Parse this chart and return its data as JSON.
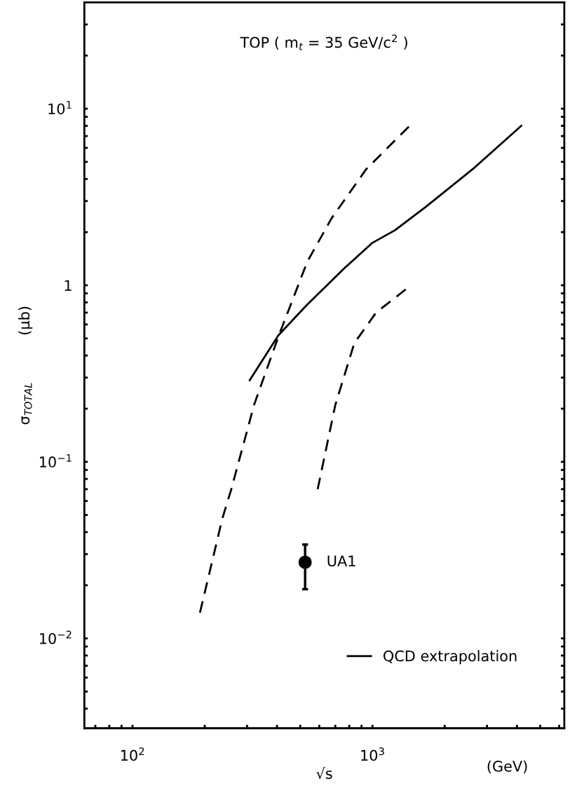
{
  "chart_data": {
    "type": "line",
    "title": "TOP ( m$_{t}$ = 35 GeV/c$^{2}$ )",
    "xlabel": "√s",
    "ylabel": "σ$_{TOTAL}$          (μb)",
    "annotations": [
      "(GeV)"
    ],
    "log": "xy",
    "grid": false,
    "legend": "bottom right",
    "xlim": [
      63,
      6300
    ],
    "ylim": [
      0.0031,
      40
    ],
    "xticks": [
      {
        "value": 70,
        "label": null
      },
      {
        "value": 80,
        "label": null
      },
      {
        "value": 90,
        "label": null
      },
      {
        "value": 100,
        "label": "10$^{2}$"
      },
      {
        "value": 200,
        "label": null
      },
      {
        "value": 300,
        "label": null
      },
      {
        "value": 400,
        "label": null
      },
      {
        "value": 500,
        "label": null
      },
      {
        "value": 600,
        "label": null
      },
      {
        "value": 700,
        "label": null
      },
      {
        "value": 800,
        "label": null
      },
      {
        "value": 900,
        "label": null
      },
      {
        "value": 1000,
        "label": "10$^{3}$"
      },
      {
        "value": 2000,
        "label": null
      },
      {
        "value": 3000,
        "label": null
      },
      {
        "value": 4000,
        "label": null
      },
      {
        "value": 5000,
        "label": null
      },
      {
        "value": 6000,
        "label": null
      }
    ],
    "yticks": [
      {
        "value": 0.004,
        "label": null
      },
      {
        "value": 0.005,
        "label": null
      },
      {
        "value": 0.006,
        "label": null
      },
      {
        "value": 0.007,
        "label": null
      },
      {
        "value": 0.008,
        "label": null
      },
      {
        "value": 0.009,
        "label": null
      },
      {
        "value": 0.01,
        "label": "10$^{−2}$"
      },
      {
        "value": 0.02,
        "label": null
      },
      {
        "value": 0.03,
        "label": null
      },
      {
        "value": 0.04,
        "label": null
      },
      {
        "value": 0.05,
        "label": null
      },
      {
        "value": 0.06,
        "label": null
      },
      {
        "value": 0.07,
        "label": null
      },
      {
        "value": 0.08,
        "label": null
      },
      {
        "value": 0.09,
        "label": null
      },
      {
        "value": 0.1,
        "label": "10$^{−1}$"
      },
      {
        "value": 0.2,
        "label": null
      },
      {
        "value": 0.3,
        "label": null
      },
      {
        "value": 0.4,
        "label": null
      },
      {
        "value": 0.5,
        "label": null
      },
      {
        "value": 0.6,
        "label": null
      },
      {
        "value": 0.7,
        "label": null
      },
      {
        "value": 0.8,
        "label": null
      },
      {
        "value": 0.9,
        "label": null
      },
      {
        "value": 1,
        "label": "1"
      },
      {
        "value": 2,
        "label": null
      },
      {
        "value": 3,
        "label": null
      },
      {
        "value": 4,
        "label": null
      },
      {
        "value": 5,
        "label": null
      },
      {
        "value": 6,
        "label": null
      },
      {
        "value": 7,
        "label": null
      },
      {
        "value": 8,
        "label": null
      },
      {
        "value": 9,
        "label": null
      },
      {
        "value": 10,
        "label": "10$^{1}$"
      },
      {
        "value": 20,
        "label": null
      },
      {
        "value": 30,
        "label": null
      }
    ],
    "series": [
      {
        "line_style": "dashed",
        "color": "#000000",
        "x": [
          191,
          237,
          258,
          321,
          405,
          535,
          676,
          942,
          1429
        ],
        "values": [
          0.014,
          0.048,
          0.07,
          0.21,
          0.51,
          1.36,
          2.4,
          4.55,
          8.0
        ]
      },
      {
        "line_style": "dashed",
        "color": "#000000",
        "x": [
          591,
          700,
          840,
          1035,
          1419
        ],
        "values": [
          0.07,
          0.21,
          0.47,
          0.7,
          0.98
        ]
      },
      {
        "line_style": "solid",
        "name": "QCD extrapolation",
        "color": "#000000",
        "x": [
          308,
          405,
          531,
          764,
          1000,
          1241,
          1667,
          2618,
          4170
        ],
        "values": [
          0.29,
          0.52,
          0.77,
          1.25,
          1.74,
          2.05,
          2.78,
          4.55,
          8.0
        ]
      },
      {
        "type": "scatter",
        "name": "UA1",
        "marker": "circle",
        "color": "#000000",
        "x": [
          524
        ],
        "values": [
          0.027
        ],
        "errors": [
          [
            0.019,
            0.034
          ]
        ]
      }
    ]
  }
}
